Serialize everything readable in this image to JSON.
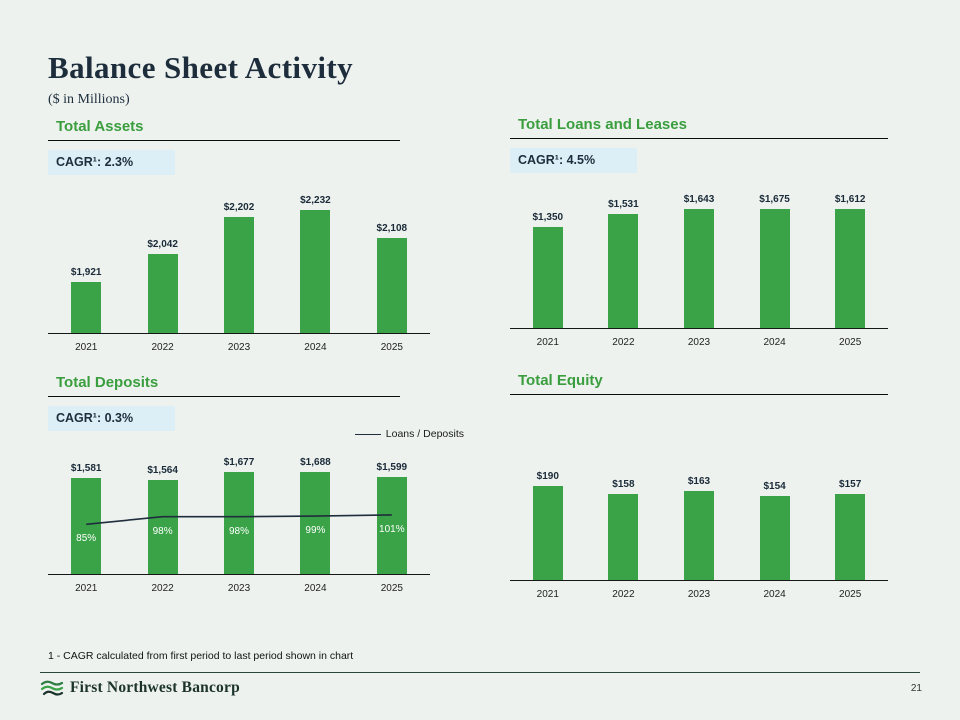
{
  "header": {
    "title": "Balance Sheet Activity",
    "subtitle": "($ in Millions)"
  },
  "colors": {
    "background": "#edf2ee",
    "bar_green": "#3aa348",
    "title_green": "#3a9e3f",
    "badge_bg": "#ddeff6",
    "line_navy": "#1f2d3d"
  },
  "chart_data": [
    {
      "type": "bar",
      "title": "Total Assets",
      "cagr_label": "CAGR¹: 2.3%",
      "categories": [
        "2021",
        "2022",
        "2023",
        "2024",
        "2025"
      ],
      "values": [
        1921,
        2042,
        2202,
        2232,
        2108
      ],
      "value_labels": [
        "$1,921",
        "$2,042",
        "$2,202",
        "$2,232",
        "$2,108"
      ],
      "ylim": [
        1700,
        2300
      ],
      "grid": false,
      "legend_position": "none"
    },
    {
      "type": "bar",
      "title": "Total Loans and Leases",
      "cagr_label": "CAGR¹: 4.5%",
      "categories": [
        "2021",
        "2022",
        "2023",
        "2024",
        "2025"
      ],
      "values": [
        1350,
        1531,
        1643,
        1675,
        1612
      ],
      "value_labels": [
        "$1,350",
        "$1,531",
        "$1,643",
        "$1,675",
        "$1,612"
      ],
      "ylim": [
        0,
        1800
      ],
      "grid": false,
      "legend_position": "none"
    },
    {
      "type": "bar+line",
      "title": "Total Deposits",
      "cagr_label": "CAGR¹: 0.3%",
      "categories": [
        "2021",
        "2022",
        "2023",
        "2024",
        "2025"
      ],
      "values": [
        1581,
        1564,
        1677,
        1688,
        1599
      ],
      "value_labels": [
        "$1,581",
        "$1,564",
        "$1,677",
        "$1,688",
        "$1,599"
      ],
      "ylim": [
        600,
        1800
      ],
      "grid": false,
      "legend_position": "top-right",
      "line_series": {
        "name": "Loans / Deposits",
        "values": [
          85,
          98,
          98,
          99,
          101
        ],
        "labels": [
          "85%",
          "98%",
          "98%",
          "99%",
          "101%"
        ],
        "ylim": [
          0,
          200
        ]
      }
    },
    {
      "type": "bar",
      "title": "Total Equity",
      "categories": [
        "2021",
        "2022",
        "2023",
        "2024",
        "2025"
      ],
      "values": [
        190,
        158,
        163,
        154,
        157
      ],
      "value_labels": [
        "$190",
        "$158",
        "$163",
        "$154",
        "$157"
      ],
      "ylim": [
        0,
        200
      ],
      "grid": false,
      "legend_position": "none"
    }
  ],
  "footnote": "1 - CAGR calculated from first period to last period shown in chart",
  "footer": {
    "company": "First Northwest Bancorp",
    "page_number": "21"
  }
}
